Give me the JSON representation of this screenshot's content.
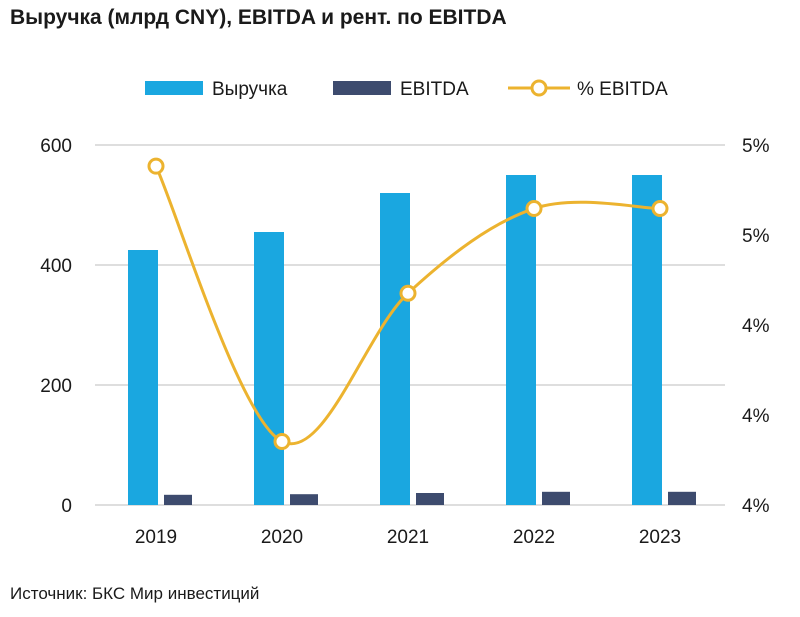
{
  "title": "Выручка (млрд CNY), EBITDA и рент. по EBITDA",
  "source": "Источник: БКС Мир инвестиций",
  "legend": [
    "Выручка",
    "EBITDA",
    "% EBITDA"
  ],
  "colors": {
    "revenue": "#1aa7e0",
    "ebitda": "#3d4b6e",
    "margin": "#ecb32f",
    "grid": "#d4d4d4"
  },
  "chart_data": {
    "type": "bar",
    "categories": [
      "2019",
      "2020",
      "2021",
      "2022",
      "2023"
    ],
    "series": [
      {
        "name": "Выручка",
        "type": "bar",
        "axis": "left",
        "values": [
          425,
          455,
          520,
          550,
          550
        ]
      },
      {
        "name": "EBITDA",
        "type": "bar",
        "axis": "left",
        "values": [
          17,
          18,
          20,
          22,
          22
        ]
      },
      {
        "name": "% EBITDA",
        "type": "line",
        "axis": "right",
        "values": [
          5.2,
          3.9,
          4.6,
          5.0,
          5.0
        ]
      }
    ],
    "ylim": [
      0,
      600
    ],
    "y_ticks": [
      "0",
      "200",
      "400",
      "600"
    ],
    "y2lim": [
      3.6,
      5.3
    ],
    "y2_ticks": [
      "4%",
      "4%",
      "4%",
      "5%",
      "5%"
    ],
    "grid": true,
    "legend_position": "top"
  }
}
